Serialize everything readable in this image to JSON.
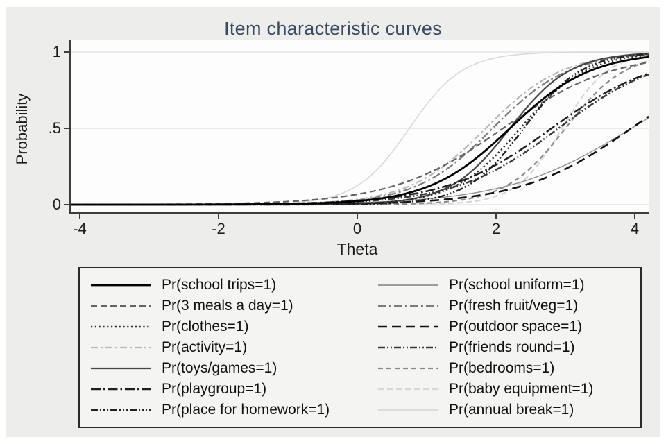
{
  "title": "Item characteristic curves",
  "chart_data": {
    "type": "line",
    "subtype": "item-characteristic-curves",
    "title": "Item characteristic curves",
    "xlabel": "Theta",
    "ylabel": "Probability",
    "xlim": [
      -4,
      4
    ],
    "ylim": [
      0,
      1
    ],
    "x_ticks": [
      "-4",
      "-2",
      "0",
      "2",
      "4"
    ],
    "x_tick_values": [
      -4,
      -2,
      0,
      2,
      4
    ],
    "y_ticks": [
      "0",
      ".5",
      "1"
    ],
    "y_tick_values": [
      0,
      0.5,
      1
    ],
    "grid": "horizontal",
    "legend_position": "bottom",
    "curve_model": "p = 1/(1+exp(-a*(theta-b)))",
    "series": [
      {
        "id": "school-trips",
        "label": "Pr(school trips=1)",
        "a": 1.7,
        "b": 2.2,
        "color": "#000000",
        "width": 2.8,
        "dash": "none"
      },
      {
        "id": "3-meals-a-day",
        "label": "Pr(3 meals a day=1)",
        "a": 1.25,
        "b": 2.1,
        "color": "#636363",
        "width": 2.2,
        "dash": "9 5"
      },
      {
        "id": "clothes",
        "label": "Pr(clothes=1)",
        "a": 2.1,
        "b": 2.35,
        "color": "#2b2b2b",
        "width": 2.4,
        "dash": "2.2 3.6"
      },
      {
        "id": "activity",
        "label": "Pr(activity=1)",
        "a": 1.8,
        "b": 1.85,
        "color": "#b8b8b8",
        "width": 2.2,
        "dash": "10 4 3 4"
      },
      {
        "id": "toys-games",
        "label": "Pr(toys/games=1)",
        "a": 2.3,
        "b": 2.2,
        "color": "#474747",
        "width": 2.2,
        "dash": "none"
      },
      {
        "id": "playgroup",
        "label": "Pr(playgroup=1)",
        "a": 1.3,
        "b": 2.8,
        "color": "#1f1f1f",
        "width": 2.5,
        "dash": "14 4 2.5 4"
      },
      {
        "id": "place-for-homework",
        "label": "Pr(place for homework=1)",
        "a": 2.4,
        "b": 2.4,
        "color": "#222222",
        "width": 2.5,
        "dash": "10 3 2 3 2 3 2 3"
      },
      {
        "id": "school-uniform",
        "label": "Pr(school uniform=1)",
        "a": 1.1,
        "b": 3.95,
        "color": "#8f8f8f",
        "width": 1.4,
        "dash": "none"
      },
      {
        "id": "fresh-fruit-veg",
        "label": "Pr(fresh fruit/veg=1)",
        "a": 1.8,
        "b": 1.95,
        "color": "#7b7b7b",
        "width": 2.2,
        "dash": "12 4 3 4"
      },
      {
        "id": "outdoor-space",
        "label": "Pr(outdoor space=1)",
        "a": 1.25,
        "b": 3.95,
        "color": "#121212",
        "width": 2.6,
        "dash": "13 7"
      },
      {
        "id": "friends-round",
        "label": "Pr(friends round=1)",
        "a": 1.35,
        "b": 2.9,
        "color": "#3a3a3a",
        "width": 2.5,
        "dash": "10 3 2 3 2 3"
      },
      {
        "id": "bedrooms",
        "label": "Pr(bedrooms=1)",
        "a": 2.3,
        "b": 3.0,
        "color": "#8a8a8a",
        "width": 2.2,
        "dash": "7 5"
      },
      {
        "id": "baby-equipment",
        "label": "Pr(baby equipment=1)",
        "a": 3.0,
        "b": 2.95,
        "color": "#d6d6d6",
        "width": 2.2,
        "dash": "8 5"
      },
      {
        "id": "annual-break",
        "label": "Pr(annual break=1)",
        "a": 2.6,
        "b": 0.75,
        "color": "#d9d9d9",
        "width": 1.6,
        "dash": "none"
      }
    ],
    "legend_columns": 2,
    "legend_fill": "column-major"
  },
  "style": {
    "figure_bg": "#ededec",
    "plot_bg": "#fdfdfd",
    "gridline_color": "#e3e3e3",
    "axis_color": "#3d3d3d",
    "title_color": "#3b4a63"
  }
}
